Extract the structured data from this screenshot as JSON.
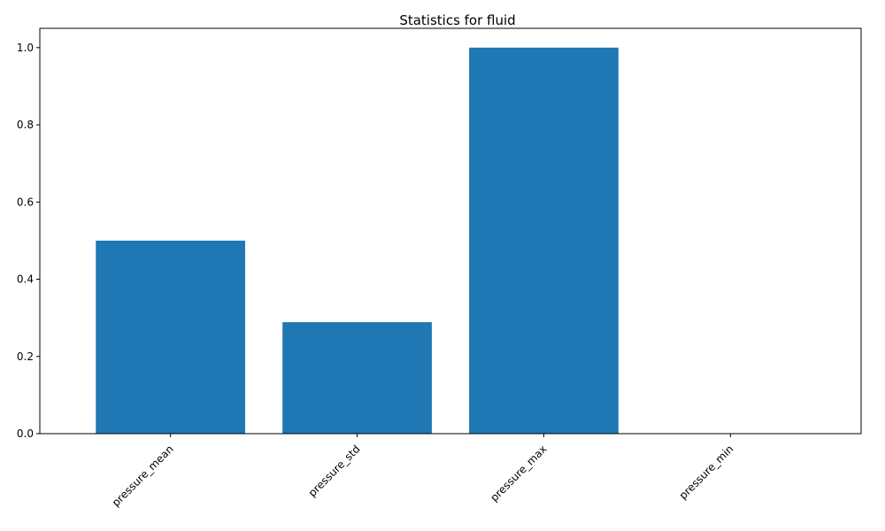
{
  "chart_data": {
    "type": "bar",
    "title": "Statistics for fluid",
    "categories": [
      "pressure_mean",
      "pressure_std",
      "pressure_max",
      "pressure_min"
    ],
    "values": [
      0.5,
      0.2887,
      1.0,
      0.0
    ],
    "ylim": [
      0,
      1.05
    ],
    "yticks": [
      "0.0",
      "0.2",
      "0.4",
      "0.6",
      "0.8",
      "1.0"
    ],
    "xlabel": "",
    "ylabel": "",
    "grid": false,
    "bar_color": "#1f77b4",
    "xtick_rotation": "45"
  }
}
